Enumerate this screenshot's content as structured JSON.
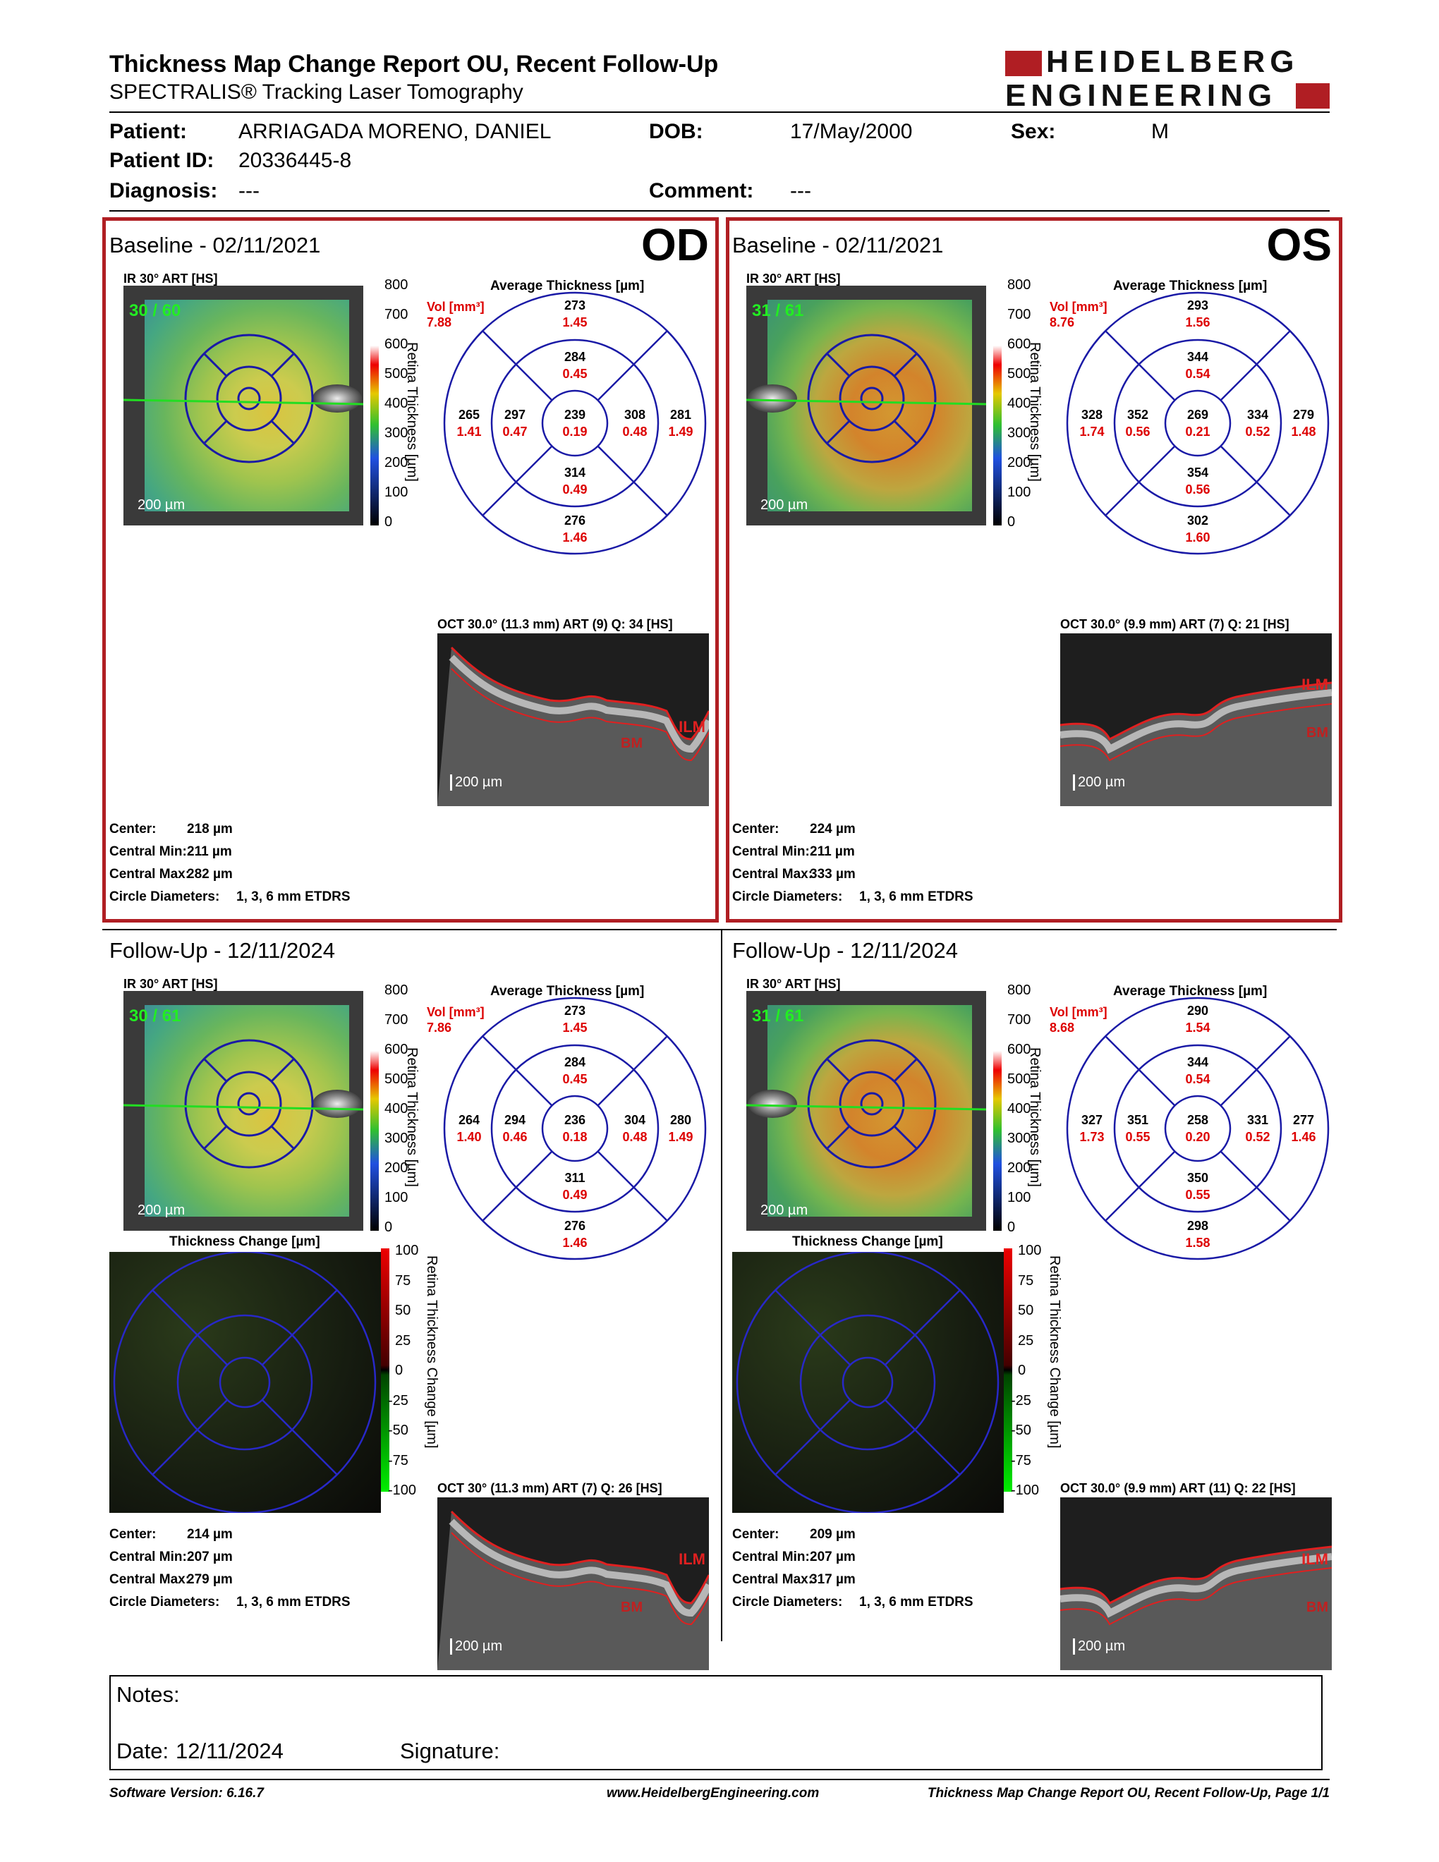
{
  "header": {
    "title": "Thickness Map Change Report OU, Recent Follow-Up",
    "subtitle": "SPECTRALIS® Tracking Laser Tomography",
    "logo_line1": "HEIDELBERG",
    "logo_line2": "ENGINEERING"
  },
  "patient": {
    "patient_label": "Patient:",
    "name": "ARRIAGADA MORENO, DANIEL",
    "dob_label": "DOB:",
    "dob": "17/May/2000",
    "sex_label": "Sex:",
    "sex": "M",
    "id_label": "Patient ID:",
    "id": "20336445-8",
    "diagnosis_label": "Diagnosis:",
    "diagnosis": "---",
    "comment_label": "Comment:",
    "comment": "---"
  },
  "colors": {
    "frame_red": "#b01e23",
    "etdrs_blue": "#1a1aa6",
    "value_red": "#d00000"
  },
  "scale_thickness": [
    "800",
    "700",
    "600",
    "500",
    "400",
    "300",
    "200",
    "100",
    "0"
  ],
  "scale_change": [
    "100",
    "75",
    "50",
    "25",
    "0",
    "-25",
    "-50",
    "-75",
    "-100"
  ],
  "scale_thickness_label": "Retina Thickness [µm]",
  "scale_change_label": "Retina Thickness Change [µm]",
  "avg_title": "Average Thickness [µm]",
  "vol_label": "Vol [mm³]",
  "change_title": "Thickness Change [µm]",
  "scale_bar": "200 µm",
  "ir_title": "IR 30° ART [HS]",
  "labels": {
    "center": "Center:",
    "cmin": "Central Min:",
    "cmax": "Central Max:",
    "circ": "Circle Diameters:",
    "circ_val": "1, 3, 6 mm ETDRS",
    "ilm": "ILM",
    "bm": "BM"
  },
  "panels": {
    "od_base": {
      "title": "Baseline - 02/11/2021",
      "eye": "OD",
      "quality": "30 / 60",
      "vol": "7.88",
      "oct_title": "OCT 30.0° (11.3 mm) ART (9) Q: 34 [HS]",
      "center": "218 µm",
      "cmin": "211 µm",
      "cmax": "282 µm",
      "grid": {
        "ot": [
          "273",
          "1.45"
        ],
        "it": [
          "284",
          "0.45"
        ],
        "oleft": [
          "265",
          "1.41"
        ],
        "ileft": [
          "297",
          "0.47"
        ],
        "c": [
          "239",
          "0.19"
        ],
        "iright": [
          "308",
          "0.48"
        ],
        "oright": [
          "281",
          "1.49"
        ],
        "ib": [
          "314",
          "0.49"
        ],
        "ob": [
          "276",
          "1.46"
        ]
      }
    },
    "os_base": {
      "title": "Baseline - 02/11/2021",
      "eye": "OS",
      "quality": "31 / 61",
      "vol": "8.76",
      "oct_title": "OCT 30.0° (9.9 mm) ART (7) Q: 21 [HS]",
      "center": "224 µm",
      "cmin": "211 µm",
      "cmax": "333 µm",
      "grid": {
        "ot": [
          "293",
          "1.56"
        ],
        "it": [
          "344",
          "0.54"
        ],
        "oleft": [
          "328",
          "1.74"
        ],
        "ileft": [
          "352",
          "0.56"
        ],
        "c": [
          "269",
          "0.21"
        ],
        "iright": [
          "334",
          "0.52"
        ],
        "oright": [
          "279",
          "1.48"
        ],
        "ib": [
          "354",
          "0.56"
        ],
        "ob": [
          "302",
          "1.60"
        ]
      }
    },
    "od_fu": {
      "title": "Follow-Up - 12/11/2024",
      "quality": "30 / 61",
      "vol": "7.86",
      "oct_title": "OCT 30° (11.3 mm) ART (7) Q: 26 [HS]",
      "center": "214 µm",
      "cmin": "207 µm",
      "cmax": "279 µm",
      "grid": {
        "ot": [
          "273",
          "1.45"
        ],
        "it": [
          "284",
          "0.45"
        ],
        "oleft": [
          "264",
          "1.40"
        ],
        "ileft": [
          "294",
          "0.46"
        ],
        "c": [
          "236",
          "0.18"
        ],
        "iright": [
          "304",
          "0.48"
        ],
        "oright": [
          "280",
          "1.49"
        ],
        "ib": [
          "311",
          "0.49"
        ],
        "ob": [
          "276",
          "1.46"
        ]
      }
    },
    "os_fu": {
      "title": "Follow-Up - 12/11/2024",
      "quality": "31 / 61",
      "vol": "8.68",
      "oct_title": "OCT 30.0° (9.9 mm) ART (11) Q: 22 [HS]",
      "center": "209 µm",
      "cmin": "207 µm",
      "cmax": "317 µm",
      "grid": {
        "ot": [
          "290",
          "1.54"
        ],
        "it": [
          "344",
          "0.54"
        ],
        "oleft": [
          "327",
          "1.73"
        ],
        "ileft": [
          "351",
          "0.55"
        ],
        "c": [
          "258",
          "0.20"
        ],
        "iright": [
          "331",
          "0.52"
        ],
        "oright": [
          "277",
          "1.46"
        ],
        "ib": [
          "350",
          "0.55"
        ],
        "ob": [
          "298",
          "1.58"
        ]
      }
    }
  },
  "notes": {
    "notes_label": "Notes:",
    "date_label": "Date:",
    "date": "12/11/2024",
    "signature_label": "Signature:"
  },
  "footer": {
    "software": "Software Version: 6.16.7",
    "website": "www.HeidelbergEngineering.com",
    "page": "Thickness Map Change Report OU, Recent Follow-Up, Page 1/1"
  }
}
